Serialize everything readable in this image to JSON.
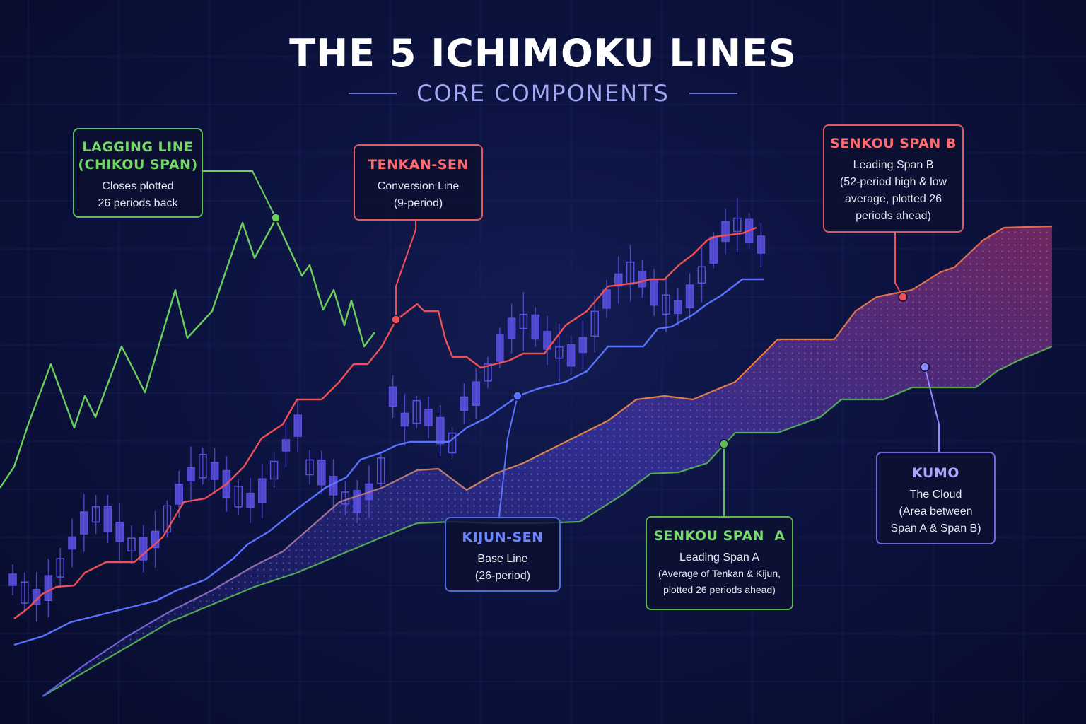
{
  "header": {
    "title": "THE 5 ICHIMOKU LINES",
    "subtitle": "CORE COMPONENTS"
  },
  "colors": {
    "background": "#0b1138",
    "lagging": "#6ccf5c",
    "tenkan": "#ef4f55",
    "kijun": "#5a72ff",
    "senkou_a": "#5fbf55",
    "senkou_b": "#ef4f55",
    "kumo": "#8e8aff",
    "candle": "#5a50e0"
  },
  "callouts": {
    "lagging": {
      "title_lines": [
        "LAGGING LINE",
        "(CHIKOU SPAN)"
      ],
      "body_lines": [
        "Closes plotted",
        "26 periods back"
      ]
    },
    "tenkan": {
      "title_lines": [
        "TENKAN-SEN"
      ],
      "body_lines": [
        "Conversion Line",
        "(9-period)"
      ]
    },
    "kijun": {
      "title_lines": [
        "KIJUN-SEN"
      ],
      "body_lines": [
        "Base Line",
        "(26-period)"
      ]
    },
    "senkou_a": {
      "title_lines": [
        "SENKOU SPAN  A"
      ],
      "body_lines": [
        "Leading Span A",
        "(Average of Tenkan & Kijun,",
        "plotted 26 periods ahead)"
      ]
    },
    "senkou_b": {
      "title_lines": [
        "SENKOU SPAN B"
      ],
      "body_lines": [
        "Leading Span B",
        "(52-period high & low",
        "average, plotted 26",
        "periods ahead)"
      ]
    },
    "kumo": {
      "title_lines": [
        "KUMO"
      ],
      "body_lines": [
        "The Cloud",
        "(Area between",
        "Span A & Span B)"
      ]
    }
  }
}
